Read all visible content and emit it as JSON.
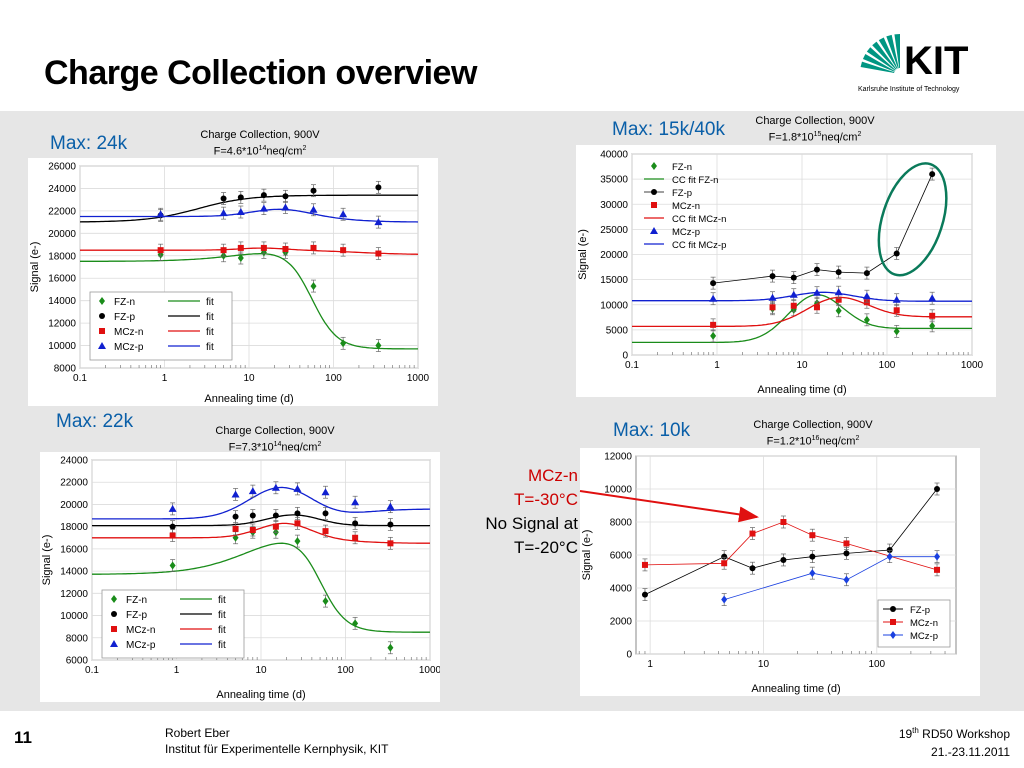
{
  "slide": {
    "title": "Charge Collection overview",
    "page_number": "11",
    "author": "Robert Eber",
    "institute": "Institut für Experimentelle Kernphysik, KIT",
    "workshop_prefix": "19",
    "workshop_sup": "th",
    "workshop_rest": " RD50 Workshop",
    "dates": "21.-23.11.2011",
    "logo_text": "KIT",
    "logo_subtext": "Karlsruhe Institute of Technology",
    "logo_color": "#009682",
    "annotation": {
      "line1": "MCz-n",
      "line2": "T=-30°C",
      "line3": "No Signal at",
      "line4": "T=-20°C"
    }
  },
  "chart_data": [
    {
      "id": "tl",
      "type": "scatter",
      "max_label": "Max: 24k",
      "title_line1": "Charge Collection, 900V",
      "title_fluence_prefix": "F=4.6*10",
      "title_fluence_exp": "14",
      "title_fluence_suffix": "neq/cm",
      "title_fluence_exp2": "2",
      "xlabel": "Annealing time (d)",
      "ylabel": "Signal (e-)",
      "xscale": "log",
      "xlim": [
        0.1,
        1000
      ],
      "ylim": [
        8000,
        26000
      ],
      "yticks": [
        8000,
        10000,
        12000,
        14000,
        16000,
        18000,
        20000,
        22000,
        24000,
        26000
      ],
      "xticks": [
        0.1,
        1,
        10,
        100,
        1000
      ],
      "xticklabels": [
        "0.1",
        "1",
        "10",
        "100",
        "1000"
      ],
      "grid": true,
      "legend_position": "bottom-left",
      "fit_label": "fit",
      "series": [
        {
          "name": "FZ-n",
          "color": "#1a8c1a",
          "marker": "diamond",
          "x": [
            0.9,
            5,
            8,
            15,
            27,
            58,
            130,
            340
          ],
          "y": [
            18100,
            18000,
            17800,
            18300,
            18300,
            15300,
            10200,
            10000
          ],
          "fit": {
            "kind": "drop",
            "low": 17500,
            "peak": 18900,
            "rise_x": 10,
            "end": 9700,
            "drop_x": 55,
            "drop_w": 0.15
          }
        },
        {
          "name": "FZ-p",
          "color": "#000000",
          "marker": "circle",
          "x": [
            0.9,
            5,
            8,
            15,
            27,
            58,
            340
          ],
          "y": [
            21600,
            23100,
            23200,
            23400,
            23300,
            23800,
            24100
          ],
          "fit": {
            "kind": "rise",
            "low": 21000,
            "high": 23400,
            "mid_x": 2.5,
            "w": 0.3
          }
        },
        {
          "name": "MCz-n",
          "color": "#e01010",
          "marker": "square",
          "x": [
            0.9,
            5,
            8,
            15,
            27,
            58,
            130,
            340
          ],
          "y": [
            18500,
            18500,
            18700,
            18700,
            18600,
            18700,
            18500,
            18200
          ],
          "fit": {
            "kind": "bump",
            "base": 18500,
            "amp": 200,
            "peak_x": 15,
            "w": 0.4,
            "end": 18100,
            "drop_x": 200,
            "drop_w": 0.3
          }
        },
        {
          "name": "MCz-p",
          "color": "#1020d0",
          "marker": "triangle",
          "x": [
            0.9,
            5,
            8,
            15,
            27,
            58,
            130,
            340
          ],
          "y": [
            21700,
            21800,
            21900,
            22200,
            22300,
            22100,
            21700,
            21000
          ],
          "fit": {
            "kind": "bump",
            "base": 21500,
            "amp": 700,
            "peak_x": 25,
            "w": 0.5,
            "end": 21000,
            "drop_x": 130,
            "drop_w": 0.25
          }
        }
      ]
    },
    {
      "id": "tr",
      "type": "scatter",
      "max_label": "Max: 15k/40k",
      "title_line1": "Charge Collection, 900V",
      "title_fluence_prefix": "F=1.8*10",
      "title_fluence_exp": "15",
      "title_fluence_suffix": "neq/cm",
      "title_fluence_exp2": "2",
      "xlabel": "Annealing time (d)",
      "ylabel": "Signal (e-)",
      "xscale": "log",
      "xlim": [
        0.1,
        1000
      ],
      "ylim": [
        0,
        40000
      ],
      "yticks": [
        0,
        5000,
        10000,
        15000,
        20000,
        25000,
        30000,
        35000,
        40000
      ],
      "xticks": [
        0.1,
        1,
        10,
        100,
        1000
      ],
      "xticklabels": [
        "0.1",
        "1",
        "10",
        "100",
        "1000"
      ],
      "grid": true,
      "legend_position": "top-left",
      "legend_labels": [
        "FZ-n",
        "CC fit FZ-n",
        "FZ-p",
        "MCz-n",
        "CC fit MCz-n",
        "MCz-p",
        "CC fit MCz-p"
      ],
      "highlight_ellipse": {
        "cx_data": 200,
        "cy_data": 27000,
        "color": "#0a7a5a"
      },
      "series": [
        {
          "name": "FZ-n",
          "color": "#1a8c1a",
          "marker": "diamond",
          "x": [
            0.9,
            4.5,
            8,
            15,
            27,
            58,
            130,
            340
          ],
          "y": [
            3800,
            9200,
            9000,
            10300,
            8800,
            7000,
            4700,
            5800
          ],
          "fit": {
            "kind": "bumpend",
            "base": 2500,
            "amp": 8700,
            "peak_x": 14,
            "w": 0.45,
            "end": 5300
          }
        },
        {
          "name": "FZ-p",
          "color": "#000000",
          "marker": "circle",
          "connect": true,
          "x": [
            0.9,
            4.5,
            8,
            15,
            27,
            58,
            130,
            340
          ],
          "y": [
            14300,
            15700,
            15400,
            17000,
            16500,
            16300,
            20200,
            36000
          ]
        },
        {
          "name": "MCz-n",
          "color": "#e01010",
          "marker": "square",
          "x": [
            0.9,
            4.5,
            8,
            15,
            27,
            58,
            130,
            340
          ],
          "y": [
            6000,
            9500,
            9800,
            9500,
            11000,
            10500,
            8900,
            7800
          ],
          "fit": {
            "kind": "bumpend",
            "base": 5700,
            "amp": 5200,
            "peak_x": 25,
            "w": 0.5,
            "end": 7600
          }
        },
        {
          "name": "MCz-p",
          "color": "#1020d0",
          "marker": "triangle",
          "x": [
            0.9,
            4.5,
            8,
            15,
            27,
            58,
            130,
            340
          ],
          "y": [
            11200,
            11400,
            12000,
            12400,
            12500,
            11700,
            11000,
            11300
          ],
          "fit": {
            "kind": "bumpend",
            "base": 10800,
            "amp": 1700,
            "peak_x": 18,
            "w": 0.5,
            "end": 10700
          }
        }
      ]
    },
    {
      "id": "bl",
      "type": "scatter",
      "max_label": "Max: 22k",
      "title_line1": "Charge Collection, 900V",
      "title_fluence_prefix": "F=7.3*10",
      "title_fluence_exp": "14",
      "title_fluence_suffix": "neq/cm",
      "title_fluence_exp2": "2",
      "xlabel": "Annealing time (d)",
      "ylabel": "Signal (e-)",
      "xscale": "log",
      "xlim": [
        0.1,
        1000
      ],
      "ylim": [
        6000,
        24000
      ],
      "yticks": [
        6000,
        8000,
        10000,
        12000,
        14000,
        16000,
        18000,
        20000,
        22000,
        24000
      ],
      "xticks": [
        0.1,
        1,
        10,
        100,
        1000
      ],
      "xticklabels": [
        "0.1",
        "1",
        "10",
        "100",
        "1000"
      ],
      "grid": true,
      "legend_position": "bottom-left",
      "fit_label": "fit",
      "series": [
        {
          "name": "FZ-n",
          "color": "#1a8c1a",
          "marker": "diamond",
          "x": [
            0.9,
            5,
            8,
            15,
            27,
            58,
            130,
            340
          ],
          "y": [
            14500,
            17000,
            17500,
            17500,
            16700,
            11300,
            9300,
            7100
          ],
          "fit": {
            "kind": "drop",
            "low": 13700,
            "peak": 18100,
            "rise_x": 8,
            "end": 8500,
            "drop_x": 50,
            "drop_w": 0.15
          }
        },
        {
          "name": "FZ-p",
          "color": "#000000",
          "marker": "circle",
          "x": [
            0.9,
            5,
            8,
            15,
            27,
            58,
            130,
            340
          ],
          "y": [
            18000,
            18900,
            19000,
            19000,
            19200,
            19200,
            18300,
            18200
          ],
          "fit": {
            "kind": "bump",
            "base": 18100,
            "amp": 1000,
            "peak_x": 25,
            "w": 0.45,
            "end": 18100,
            "drop_x": 150,
            "drop_w": 0.25
          }
        },
        {
          "name": "MCz-n",
          "color": "#e01010",
          "marker": "square",
          "x": [
            0.9,
            5,
            8,
            15,
            27,
            58,
            130,
            340
          ],
          "y": [
            17200,
            17800,
            17700,
            18000,
            18300,
            17600,
            17000,
            16500
          ],
          "fit": {
            "kind": "bump",
            "base": 17000,
            "amp": 1400,
            "peak_x": 20,
            "w": 0.45,
            "end": 16500,
            "drop_x": 100,
            "drop_w": 0.25
          }
        },
        {
          "name": "MCz-p",
          "color": "#1020d0",
          "marker": "triangle",
          "x": [
            0.9,
            5,
            8,
            15,
            27,
            58,
            130,
            340
          ],
          "y": [
            19600,
            20900,
            21200,
            21500,
            21400,
            21100,
            20200,
            19800
          ],
          "fit": {
            "kind": "bump",
            "base": 18700,
            "amp": 2900,
            "peak_x": 18,
            "w": 0.55,
            "end": 19600,
            "drop_x": 120,
            "drop_w": 0.25
          }
        }
      ]
    },
    {
      "id": "br",
      "type": "line",
      "max_label": "Max: 10k",
      "title_line1": "Charge Collection, 900V",
      "title_fluence_prefix": "F=1.2*10",
      "title_fluence_exp": "16",
      "title_fluence_suffix": "neq/cm",
      "title_fluence_exp2": "2",
      "xlabel": "Annealing time (d)",
      "ylabel": "Signal (e-)",
      "xscale": "log",
      "xlim": [
        0.75,
        500
      ],
      "ylim": [
        0,
        12000
      ],
      "yticks": [
        0,
        2000,
        4000,
        6000,
        8000,
        10000,
        12000
      ],
      "xticks": [
        1,
        10,
        100
      ],
      "xticklabels": [
        "1",
        "10",
        "100"
      ],
      "grid": true,
      "legend_position": "bottom-right",
      "series": [
        {
          "name": "FZ-p",
          "color": "#000000",
          "marker": "circle",
          "connect": true,
          "x": [
            0.9,
            4.5,
            8,
            15,
            27,
            54,
            130,
            340
          ],
          "y": [
            3600,
            5900,
            5200,
            5700,
            5900,
            6100,
            6300,
            10000
          ]
        },
        {
          "name": "MCz-n",
          "color": "#e01010",
          "marker": "square",
          "connect": true,
          "x": [
            0.9,
            4.5,
            8,
            15,
            27,
            54,
            340
          ],
          "y": [
            5400,
            5500,
            7300,
            8000,
            7200,
            6700,
            5100
          ]
        },
        {
          "name": "MCz-p",
          "color": "#1a40e0",
          "marker": "diamond",
          "connect": true,
          "x": [
            4.5,
            27,
            54,
            130,
            340
          ],
          "y": [
            3300,
            4900,
            4500,
            5900,
            5900
          ]
        }
      ]
    }
  ]
}
